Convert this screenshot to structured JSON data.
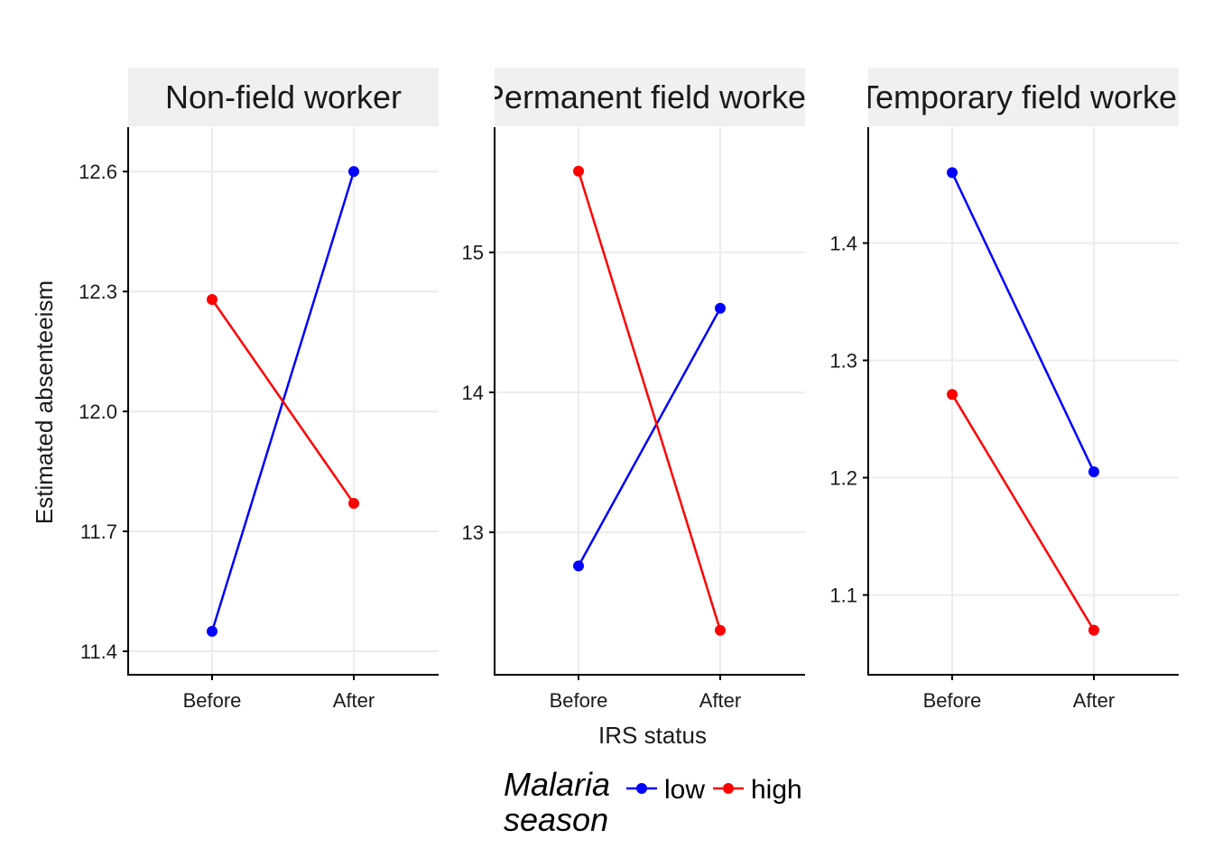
{
  "chart_data": {
    "type": "line",
    "ylabel": "Estimated absenteeism",
    "xlabel": "IRS status",
    "categories": [
      "Before",
      "After"
    ],
    "legend": {
      "title_line1": "Malaria",
      "title_line2": "season",
      "position": "bottom",
      "entries": [
        {
          "name": "low",
          "color": "#0000ff"
        },
        {
          "name": "high",
          "color": "#ff0000"
        }
      ]
    },
    "panels": [
      {
        "title": "Non-field worker",
        "ylim": [
          11.4,
          12.65
        ],
        "yticks": [
          11.4,
          11.7,
          12.0,
          12.3,
          12.6
        ],
        "ytick_labels": [
          "11.4",
          "11.7",
          "12.0",
          "12.3",
          "12.6"
        ],
        "series": [
          {
            "name": "low",
            "color": "#0000ff",
            "values": [
              11.45,
              12.6
            ]
          },
          {
            "name": "high",
            "color": "#ff0000",
            "values": [
              12.28,
              11.77
            ]
          }
        ]
      },
      {
        "title": "Permanent field worker",
        "ylim": [
          12.15,
          15.72
        ],
        "yticks": [
          13,
          14,
          15
        ],
        "ytick_labels": [
          "13",
          "14",
          "15"
        ],
        "series": [
          {
            "name": "low",
            "color": "#0000ff",
            "values": [
              12.76,
              14.6
            ]
          },
          {
            "name": "high",
            "color": "#ff0000",
            "values": [
              15.58,
              12.3
            ]
          }
        ]
      },
      {
        "title": "Temporary field worker",
        "ylim": [
          1.052,
          1.478
        ],
        "yticks": [
          1.1,
          1.2,
          1.3,
          1.4
        ],
        "ytick_labels": [
          "1.1",
          "1.2",
          "1.3",
          "1.4"
        ],
        "series": [
          {
            "name": "low",
            "color": "#0000ff",
            "values": [
              1.46,
              1.205
            ]
          },
          {
            "name": "high",
            "color": "#ff0000",
            "values": [
              1.271,
              1.07
            ]
          }
        ]
      }
    ]
  }
}
